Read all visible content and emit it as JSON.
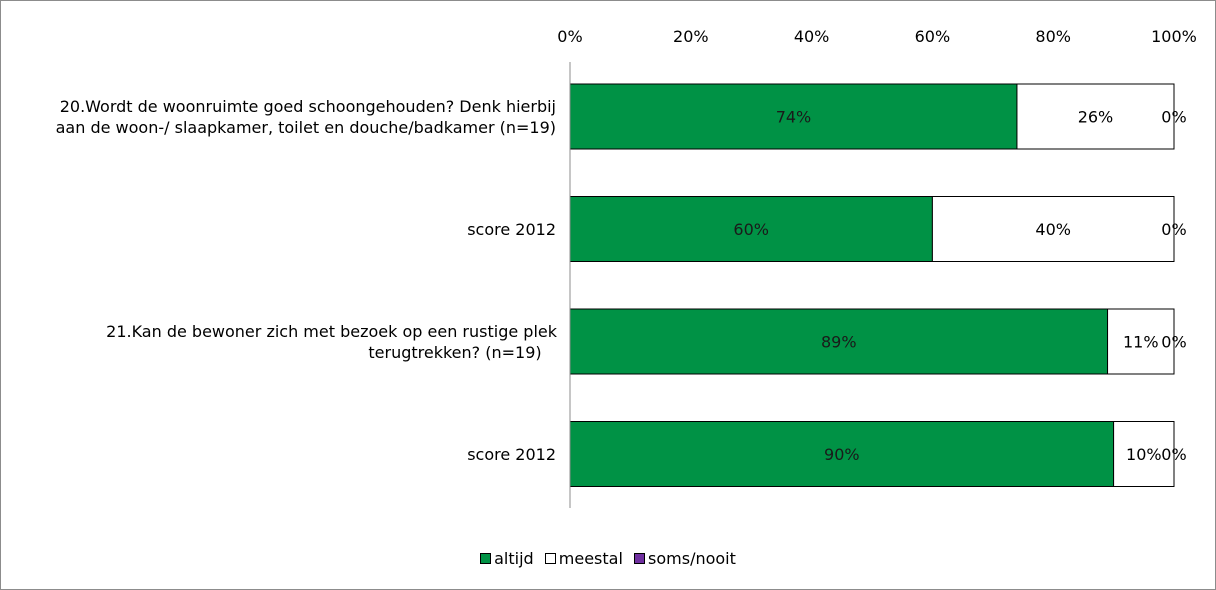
{
  "chart_data": {
    "type": "bar",
    "orientation": "horizontal",
    "stacked": "percent",
    "categories": [
      "20.Wordt de woonruimte goed schoongehouden? Denk hierbij aan de woon-/ slaapkamer, toilet en douche/badkamer (n=19)",
      "score 2012",
      "21.Kan de bewoner zich met bezoek op een rustige plek terugtrekken? (n=19)",
      "score 2012"
    ],
    "series": [
      {
        "name": "altijd",
        "color": "#009245",
        "values": [
          74,
          60,
          89,
          90
        ]
      },
      {
        "name": "meestal",
        "color": "#ffffff",
        "values": [
          26,
          40,
          11,
          10
        ]
      },
      {
        "name": "soms/nooit",
        "color": "#7030a0",
        "values": [
          0,
          0,
          0,
          0
        ]
      }
    ],
    "data_labels": [
      [
        "74%",
        "26%",
        "0%"
      ],
      [
        "60%",
        "40%",
        "0%"
      ],
      [
        "89%",
        "11%",
        "0%"
      ],
      [
        "90%",
        "10%",
        "0%"
      ]
    ],
    "xlim": [
      0,
      100
    ],
    "x_ticks": [
      "0%",
      "20%",
      "40%",
      "60%",
      "80%",
      "100%"
    ],
    "x_axis_position": "top",
    "gridlines": false,
    "legend_position": "bottom"
  }
}
